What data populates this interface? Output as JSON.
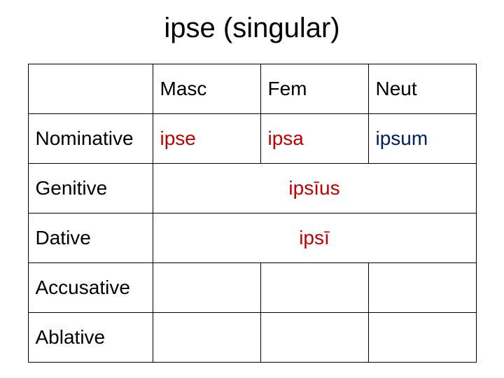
{
  "title": "ipse (singular)",
  "headers": {
    "masc": "Masc",
    "fem": "Fem",
    "neut": "Neut"
  },
  "rows": {
    "nominative": {
      "label": "Nominative",
      "masc": "ipse",
      "fem": "ipsa",
      "neut": "ipsum"
    },
    "genitive": {
      "label": "Genitive",
      "merged": "ipsīus"
    },
    "dative": {
      "label": "Dative",
      "merged": "ipsī"
    },
    "accusative": {
      "label": "Accusative"
    },
    "ablative": {
      "label": "Ablative"
    }
  },
  "colors": {
    "red": "#c00000",
    "blue": "#002060",
    "text": "#000000",
    "border": "#000000",
    "background": "#ffffff"
  },
  "font_sizes": {
    "title": 40,
    "cell": 28
  }
}
